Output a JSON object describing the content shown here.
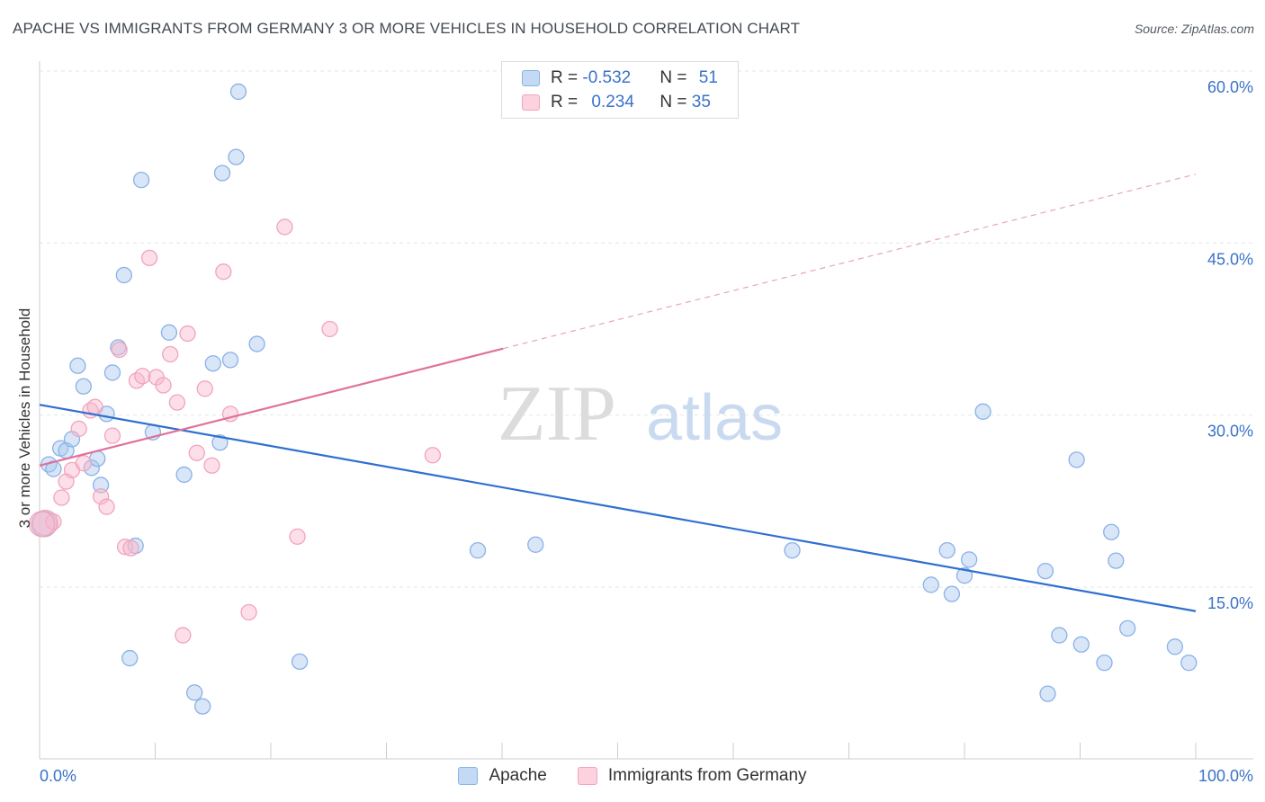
{
  "title": "APACHE VS IMMIGRANTS FROM GERMANY 3 OR MORE VEHICLES IN HOUSEHOLD CORRELATION CHART",
  "source": "Source: ZipAtlas.com",
  "watermark": {
    "zip": "ZIP",
    "atlas": "atlas"
  },
  "legend": {
    "rows": [
      {
        "r_label": "R = ",
        "r_value": "-0.532",
        "n_label": "N = ",
        "n_value": "51",
        "color": "#a8c8f0"
      },
      {
        "r_label": "R = ",
        "r_value": "0.234",
        "n_label": "N = ",
        "n_value": "35",
        "color": "#f8b8cc"
      }
    ]
  },
  "bottom_legend": [
    {
      "label": "Apache",
      "color": "#a8c8f0"
    },
    {
      "label": "Immigrants from Germany",
      "color": "#f8b8cc"
    }
  ],
  "chart_data": {
    "type": "scatter",
    "title": "APACHE VS IMMIGRANTS FROM GERMANY 3 OR MORE VEHICLES IN HOUSEHOLD CORRELATION CHART",
    "xlabel": "",
    "ylabel": "3 or more Vehicles in Household",
    "xlim": [
      0,
      100
    ],
    "ylim": [
      0,
      62
    ],
    "x_tick_labels": [
      "0.0%",
      "100.0%"
    ],
    "y_ticks": [
      15,
      30,
      45,
      60
    ],
    "y_tick_labels": [
      "15.0%",
      "30.0%",
      "45.0%",
      "60.0%"
    ],
    "grid": true,
    "legend_position": "top-center",
    "series": [
      {
        "name": "Apache",
        "color": "#5b8fd8",
        "fill": "#a8c8f0",
        "trend": {
          "x": [
            0,
            100
          ],
          "y": [
            30.9,
            12.9
          ],
          "style": "solid"
        },
        "points": [
          [
            0.8,
            25.7
          ],
          [
            1.2,
            25.3
          ],
          [
            1.8,
            27.1
          ],
          [
            2.3,
            26.9
          ],
          [
            2.8,
            27.9
          ],
          [
            3.3,
            34.3
          ],
          [
            3.8,
            32.5
          ],
          [
            4.5,
            25.4
          ],
          [
            5.0,
            26.2
          ],
          [
            5.3,
            23.9
          ],
          [
            5.8,
            30.1
          ],
          [
            6.3,
            33.7
          ],
          [
            6.8,
            35.9
          ],
          [
            7.3,
            42.2
          ],
          [
            7.8,
            8.8
          ],
          [
            8.3,
            18.6
          ],
          [
            8.8,
            50.5
          ],
          [
            9.8,
            28.5
          ],
          [
            11.2,
            37.2
          ],
          [
            12.5,
            24.8
          ],
          [
            13.4,
            5.8
          ],
          [
            14.1,
            4.6
          ],
          [
            15.0,
            34.5
          ],
          [
            15.6,
            27.6
          ],
          [
            15.8,
            51.1
          ],
          [
            16.5,
            34.8
          ],
          [
            17.0,
            52.5
          ],
          [
            17.2,
            58.2
          ],
          [
            18.8,
            36.2
          ],
          [
            22.5,
            8.5
          ],
          [
            37.9,
            18.2
          ],
          [
            42.9,
            18.7
          ],
          [
            65.1,
            18.2
          ],
          [
            77.1,
            15.2
          ],
          [
            78.5,
            18.2
          ],
          [
            78.9,
            14.4
          ],
          [
            80.0,
            16.0
          ],
          [
            80.4,
            17.4
          ],
          [
            81.6,
            30.3
          ],
          [
            87.0,
            16.4
          ],
          [
            88.2,
            10.8
          ],
          [
            87.2,
            5.7
          ],
          [
            89.7,
            26.1
          ],
          [
            90.1,
            10.0
          ],
          [
            92.1,
            8.4
          ],
          [
            92.7,
            19.8
          ],
          [
            93.1,
            17.3
          ],
          [
            94.1,
            11.4
          ],
          [
            98.2,
            9.8
          ],
          [
            99.4,
            8.4
          ],
          [
            0.4,
            20.5
          ]
        ]
      },
      {
        "name": "Immigrants from Germany",
        "color": "#e07aa0",
        "fill": "#f8b8cc",
        "trend": {
          "x": [
            0,
            40.1
          ],
          "y": [
            25.6,
            35.8
          ],
          "style": "solid",
          "dashed_extension": {
            "x": [
              40.1,
              100
            ],
            "y": [
              35.8,
              51.0
            ]
          }
        },
        "points": [
          [
            0.5,
            20.6
          ],
          [
            1.2,
            20.7
          ],
          [
            1.9,
            22.8
          ],
          [
            2.3,
            24.2
          ],
          [
            2.8,
            25.2
          ],
          [
            3.4,
            28.8
          ],
          [
            3.8,
            25.8
          ],
          [
            4.4,
            30.4
          ],
          [
            4.8,
            30.7
          ],
          [
            5.3,
            22.9
          ],
          [
            5.8,
            22.0
          ],
          [
            6.3,
            28.2
          ],
          [
            6.9,
            35.7
          ],
          [
            7.4,
            18.5
          ],
          [
            7.9,
            18.4
          ],
          [
            8.4,
            33.0
          ],
          [
            8.9,
            33.4
          ],
          [
            9.5,
            43.7
          ],
          [
            10.1,
            33.3
          ],
          [
            10.7,
            32.6
          ],
          [
            11.3,
            35.3
          ],
          [
            11.9,
            31.1
          ],
          [
            12.4,
            10.8
          ],
          [
            12.8,
            37.1
          ],
          [
            13.6,
            26.7
          ],
          [
            14.3,
            32.3
          ],
          [
            14.9,
            25.6
          ],
          [
            15.9,
            42.5
          ],
          [
            16.5,
            30.1
          ],
          [
            18.1,
            12.8
          ],
          [
            21.2,
            46.4
          ],
          [
            22.3,
            19.4
          ],
          [
            25.1,
            37.5
          ],
          [
            34.0,
            26.5
          ],
          [
            0.2,
            20.5
          ]
        ]
      }
    ]
  }
}
